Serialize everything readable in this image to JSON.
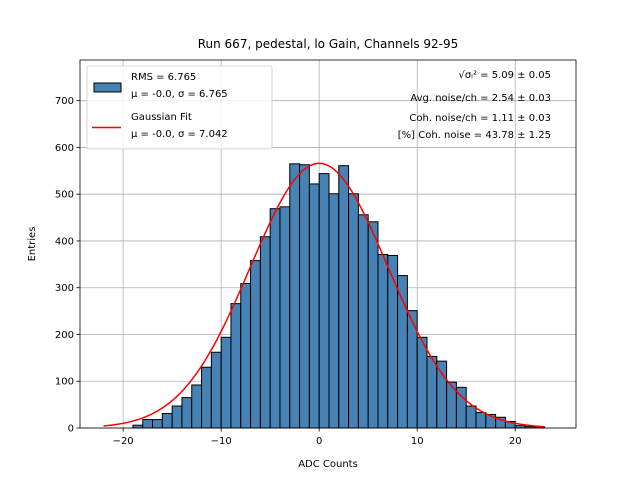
{
  "chart_data": {
    "type": "bar",
    "title": "Run 667, pedestal, lo Gain, Channels 92-95",
    "xlabel": "ADC Counts",
    "ylabel": "Entries",
    "xlim": [
      -24.4,
      26.2
    ],
    "ylim": [
      0,
      787
    ],
    "xticks": [
      -20,
      -10,
      0,
      10,
      20
    ],
    "yticks": [
      0,
      100,
      200,
      300,
      400,
      500,
      600,
      700
    ],
    "grid": true,
    "bin_width": 1,
    "bin_left_edges": [
      -19,
      -18,
      -17,
      -16,
      -15,
      -14,
      -13,
      -12,
      -11,
      -10,
      -9,
      -8,
      -7,
      -6,
      -5,
      -4,
      -3,
      -2,
      -1,
      0,
      1,
      2,
      3,
      4,
      5,
      6,
      7,
      8,
      9,
      10,
      11,
      12,
      13,
      14,
      15,
      16,
      17,
      18,
      19,
      20,
      21,
      22
    ],
    "values": [
      6,
      18,
      18,
      31,
      47,
      65,
      92,
      130,
      162,
      194,
      266,
      309,
      358,
      409,
      469,
      473,
      565,
      563,
      522,
      544,
      501,
      561,
      501,
      456,
      441,
      371,
      369,
      326,
      251,
      194,
      153,
      143,
      98,
      87,
      47,
      33,
      29,
      23,
      14,
      5,
      3,
      2
    ],
    "bar_color": "#4682b4",
    "fit": {
      "type": "gaussian",
      "mu": 0.0,
      "sigma": 7.042,
      "amplitude": 566,
      "x_range": [
        -22,
        23
      ],
      "color": "#ff0000"
    },
    "legend": {
      "placement": "top-left",
      "entries": [
        {
          "line1": "RMS = 6.765",
          "line2": "μ = -0.0, σ = 6.765"
        },
        {
          "line1": "Gaussian Fit",
          "line2": "μ = -0.0, σ = 7.042"
        }
      ]
    },
    "annotations": [
      {
        "label": "√σᵢ²",
        "text": " = 5.09 ± 0.05"
      },
      {
        "text": "Avg. noise/ch = 2.54 ± 0.03"
      },
      {
        "text": "Coh. noise/ch = 1.11 ± 0.03"
      },
      {
        "text": "[%] Coh. noise = 43.78 ± 1.25"
      }
    ]
  }
}
